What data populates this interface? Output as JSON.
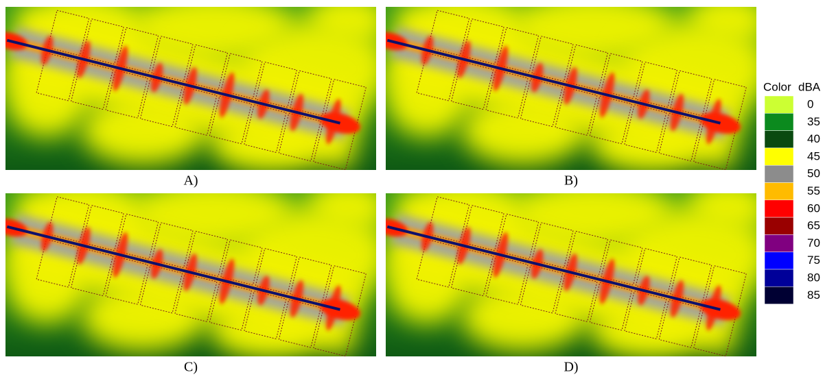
{
  "panels": [
    {
      "label": "A)"
    },
    {
      "label": "B)"
    },
    {
      "label": "C)"
    },
    {
      "label": "D)"
    }
  ],
  "legend": {
    "color_header": "Color",
    "unit_header": "dBA",
    "items": [
      {
        "value": "0",
        "color": "#ccff33"
      },
      {
        "value": "35",
        "color": "#0b8a1e"
      },
      {
        "value": "40",
        "color": "#0a4a10"
      },
      {
        "value": "45",
        "color": "#ffff00"
      },
      {
        "value": "50",
        "color": "#8c8c8c"
      },
      {
        "value": "55",
        "color": "#ffbb00"
      },
      {
        "value": "60",
        "color": "#ff0000"
      },
      {
        "value": "65",
        "color": "#990000"
      },
      {
        "value": "70",
        "color": "#800080"
      },
      {
        "value": "75",
        "color": "#0000ff"
      },
      {
        "value": "80",
        "color": "#000099"
      },
      {
        "value": "85",
        "color": "#000033"
      }
    ]
  }
}
